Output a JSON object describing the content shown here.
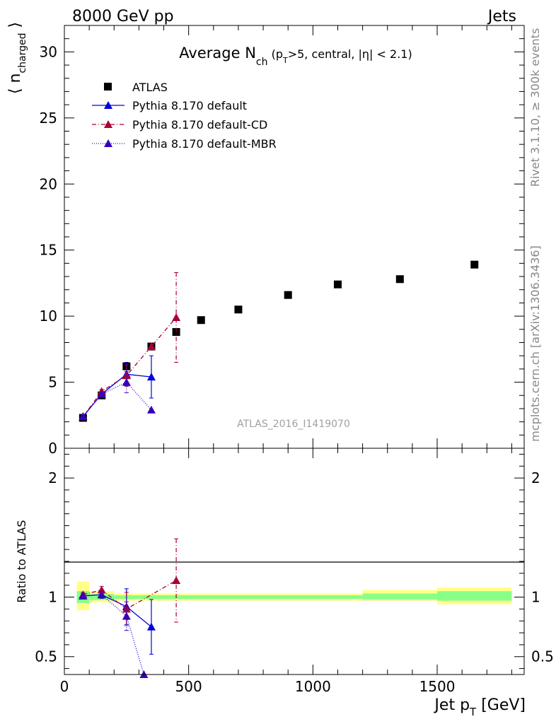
{
  "header": {
    "left": "8000 GeV pp",
    "right": "Jets"
  },
  "side_labels": {
    "top": "Rivet 3.1.10, ≥ 300k events",
    "bottom": "mcplots.cern.ch [arXiv:1306.3436]"
  },
  "watermark": "ATLAS_2016_I1419070",
  "colors": {
    "atlas": "#000000",
    "default": "#0000dd",
    "cd": "#aa0033",
    "mbr": "#3300bb",
    "band_inner": "#88ff88",
    "band_outer": "#ffff88"
  },
  "chart_data": [
    {
      "type": "scatter",
      "title": {
        "main": "Average N",
        "sub": "ch",
        "rest1": " (p",
        "sub2": "T",
        "rest2": ">5, central, |η| < 2.1)"
      },
      "ylabel": {
        "main": "⟨ n",
        "sub": "charged",
        "close": " ⟩"
      },
      "ylim": [
        0,
        32
      ],
      "xlim": [
        0,
        1850
      ],
      "y_ticks": [
        "0",
        "5",
        "10",
        "15",
        "20",
        "25",
        "30"
      ],
      "series": [
        {
          "name": "ATLAS",
          "marker": "square",
          "x": [
            75,
            150,
            250,
            350,
            450,
            550,
            700,
            900,
            1100,
            1350,
            1650
          ],
          "y": [
            2.3,
            4.0,
            6.2,
            7.7,
            8.8,
            9.7,
            10.5,
            11.6,
            12.4,
            12.8,
            13.9
          ]
        },
        {
          "name": "Pythia 8.170 default",
          "marker": "triangle",
          "line": "solid",
          "x": [
            75,
            150,
            250,
            350
          ],
          "y": [
            2.4,
            4.1,
            5.6,
            5.4
          ],
          "err": [
            0.1,
            0.15,
            0.9,
            1.6
          ]
        },
        {
          "name": "Pythia 8.170 default-CD",
          "marker": "triangle",
          "line": "dashdot",
          "x": [
            75,
            150,
            250,
            350,
            450
          ],
          "y": [
            2.4,
            4.3,
            5.5,
            7.7,
            9.9
          ],
          "err": [
            0.1,
            0.15,
            0.8,
            0,
            3.4
          ]
        },
        {
          "name": "Pythia 8.170 default-MBR",
          "marker": "triangle",
          "line": "dotted",
          "x": [
            75,
            150,
            250,
            350
          ],
          "y": [
            2.4,
            4.1,
            5.0,
            2.9
          ],
          "err": [
            0.1,
            0.15,
            0.8,
            0
          ]
        }
      ]
    },
    {
      "type": "line",
      "ylabel": "Ratio to ATLAS",
      "ylim": [
        0.35,
        2.25
      ],
      "y_ticks": [
        "0.5",
        "1",
        "2"
      ],
      "xlabel": {
        "main": "Jet p",
        "sub": "T",
        "rest": " [GeV]"
      },
      "x_ticks": [
        "0",
        "500",
        "1000",
        "1500"
      ],
      "bands": [
        {
          "x0": 50,
          "x1": 100,
          "inner": [
            0.95,
            1.05
          ],
          "outer": [
            0.89,
            1.13
          ]
        },
        {
          "x0": 100,
          "x1": 200,
          "inner": [
            0.975,
            1.025
          ],
          "outer": [
            0.955,
            1.05
          ]
        },
        {
          "x0": 200,
          "x1": 1200,
          "inner": [
            0.985,
            1.015
          ],
          "outer": [
            0.97,
            1.03
          ]
        },
        {
          "x0": 1200,
          "x1": 1500,
          "inner": [
            0.98,
            1.03
          ],
          "outer": [
            0.97,
            1.06
          ]
        },
        {
          "x0": 1500,
          "x1": 1800,
          "inner": [
            0.97,
            1.05
          ],
          "outer": [
            0.94,
            1.08
          ]
        }
      ],
      "series": [
        {
          "name": "Pythia 8.170 default",
          "x": [
            75,
            150,
            250,
            350
          ],
          "y": [
            1.01,
            1.02,
            0.92,
            0.75
          ],
          "err": [
            0.02,
            0.03,
            0.15,
            0.23
          ]
        },
        {
          "name": "Pythia 8.170 default-CD",
          "x": [
            75,
            150,
            250,
            450
          ],
          "y": [
            1.02,
            1.06,
            0.9,
            1.14
          ],
          "err": [
            0.02,
            0.03,
            0.14,
            0.35
          ]
        },
        {
          "name": "Pythia 8.170 default-MBR",
          "x": [
            75,
            150,
            250,
            320
          ],
          "y": [
            1.01,
            1.02,
            0.84,
            0.35
          ],
          "err": [
            0.02,
            0.03,
            0.12,
            0
          ]
        }
      ]
    }
  ]
}
